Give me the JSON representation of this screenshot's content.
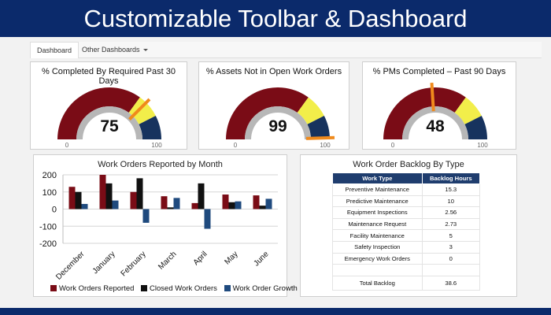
{
  "banner": {
    "title": "Customizable Toolbar & Dashboard"
  },
  "tabs": [
    {
      "label": "Dashboard",
      "active": true
    },
    {
      "label": "Other Dashboards"
    }
  ],
  "gauges": [
    {
      "title": "% Completed By Required Past 30 Days",
      "value": "75",
      "value_num": 75,
      "min": "0",
      "max": "100"
    },
    {
      "title": "% Assets Not in Open Work Orders",
      "value": "99",
      "value_num": 99,
      "min": "0",
      "max": "100"
    },
    {
      "title": "% PMs Completed – Past 90 Days",
      "value": "48",
      "value_num": 48,
      "min": "0",
      "max": "100"
    }
  ],
  "gauge_colors": {
    "red": "#7a0c16",
    "yellow": "#f2ee4a",
    "navy": "#17335e",
    "needle": "#f08a1c",
    "ring": "#b7b7b7"
  },
  "chart_data": {
    "type": "bar",
    "title": "Work Orders Reported by Month",
    "categories": [
      "December",
      "January",
      "February",
      "March",
      "April",
      "May",
      "June"
    ],
    "series": [
      {
        "name": "Work Orders Reported",
        "color": "#7a0c16",
        "values": [
          130,
          200,
          100,
          75,
          35,
          85,
          80
        ]
      },
      {
        "name": "Closed Work Orders",
        "color": "#111111",
        "values": [
          100,
          150,
          180,
          10,
          150,
          40,
          20
        ]
      },
      {
        "name": "Work Order Growth",
        "color": "#1f4a7e",
        "values": [
          30,
          50,
          -80,
          65,
          -115,
          45,
          60
        ]
      }
    ],
    "ylim": [
      -200,
      200
    ],
    "yticks": [
      "200",
      "100",
      "0",
      "-100",
      "-200"
    ],
    "ytick_values": [
      200,
      100,
      0,
      -100,
      -200
    ],
    "legend_position": "bottom"
  },
  "backlog": {
    "title": "Work Order Backlog By Type",
    "headers": [
      "Work Type",
      "Backlog Hours"
    ],
    "rows": [
      {
        "type": "Preventive Maintenance",
        "hours": "15.3"
      },
      {
        "type": "Predictive Maintenance",
        "hours": "10"
      },
      {
        "type": "Equipment Inspections",
        "hours": "2.56"
      },
      {
        "type": "Maintenance Request",
        "hours": "2.73"
      },
      {
        "type": "Facility Maintenance",
        "hours": "5"
      },
      {
        "type": "Safety Inspection",
        "hours": "3"
      },
      {
        "type": "Emergency Work Orders",
        "hours": "0"
      },
      {
        "type": "",
        "hours": ""
      }
    ],
    "total": {
      "label": "Total Backlog",
      "value": "38.6"
    }
  }
}
